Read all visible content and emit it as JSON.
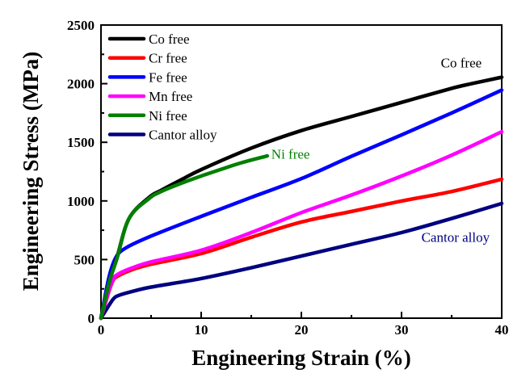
{
  "chart_data": {
    "type": "line",
    "title": "",
    "xlabel": "Engineering Strain (%)",
    "ylabel": "Engineering Stress (MPa)",
    "xlim": [
      0,
      40
    ],
    "ylim": [
      0,
      2500
    ],
    "xticks": [
      0,
      10,
      20,
      30,
      40
    ],
    "yticks": [
      0,
      500,
      1000,
      1500,
      2000,
      2500
    ],
    "x_minor_step": 5,
    "y_minor_step": 250,
    "grid": false,
    "legend_position": "top-left",
    "series": [
      {
        "name": "Co free",
        "color": "#000000",
        "x": [
          0,
          0.8,
          1.6,
          2.8,
          4.8,
          6,
          8,
          10,
          15,
          20,
          25,
          30,
          35,
          37,
          40
        ],
        "y": [
          0,
          300,
          520,
          850,
          1030,
          1090,
          1180,
          1267,
          1450,
          1600,
          1720,
          1840,
          1960,
          2000,
          2055
        ]
      },
      {
        "name": "Cr free",
        "color": "#ff0000",
        "x": [
          0,
          0.8,
          1.2,
          1.6,
          3,
          5,
          10,
          15,
          20,
          25,
          30,
          35,
          40
        ],
        "y": [
          0,
          230,
          320,
          355,
          410,
          460,
          551,
          690,
          820,
          910,
          999,
          1080,
          1185
        ]
      },
      {
        "name": "Fe free",
        "color": "#0000ff",
        "x": [
          0,
          0.8,
          1.5,
          2.5,
          5,
          10,
          15,
          20,
          25,
          30,
          35,
          40
        ],
        "y": [
          0,
          350,
          520,
          600,
          700,
          868,
          1030,
          1190,
          1380,
          1563,
          1750,
          1945
        ]
      },
      {
        "name": "Mn free",
        "color": "#ff00ff",
        "x": [
          0,
          0.8,
          1.2,
          1.6,
          3,
          5,
          10,
          15,
          20,
          25,
          30,
          35,
          40
        ],
        "y": [
          0,
          240,
          330,
          370,
          425,
          480,
          579,
          730,
          900,
          1050,
          1212,
          1390,
          1590
        ]
      },
      {
        "name": "Ni free",
        "color": "#008000",
        "x": [
          0,
          0.8,
          1.6,
          2.8,
          4.8,
          6,
          8,
          10,
          12,
          14,
          16.6
        ],
        "y": [
          0,
          300,
          510,
          850,
          1020,
          1080,
          1150,
          1212,
          1270,
          1325,
          1384
        ]
      },
      {
        "name": "Cantor alloy",
        "color": "#000080",
        "x": [
          0,
          0.8,
          1.3,
          1.8,
          3,
          5,
          10,
          15,
          20,
          25,
          30,
          35,
          40
        ],
        "y": [
          0,
          110,
          170,
          195,
          225,
          265,
          338,
          430,
          530,
          630,
          730,
          850,
          978
        ]
      }
    ],
    "annotations": [
      {
        "text": "Co free",
        "color": "#000000",
        "near_series": "Co free",
        "anchor_x": 38,
        "anchor_y": 2140
      },
      {
        "text": "Ni free",
        "color": "#008000",
        "near_series": "Ni free",
        "anchor_x": 17,
        "anchor_y": 1360
      },
      {
        "text": "Cantor alloy",
        "color": "#000080",
        "near_series": "Cantor alloy",
        "anchor_x": 38.8,
        "anchor_y": 650
      }
    ]
  }
}
